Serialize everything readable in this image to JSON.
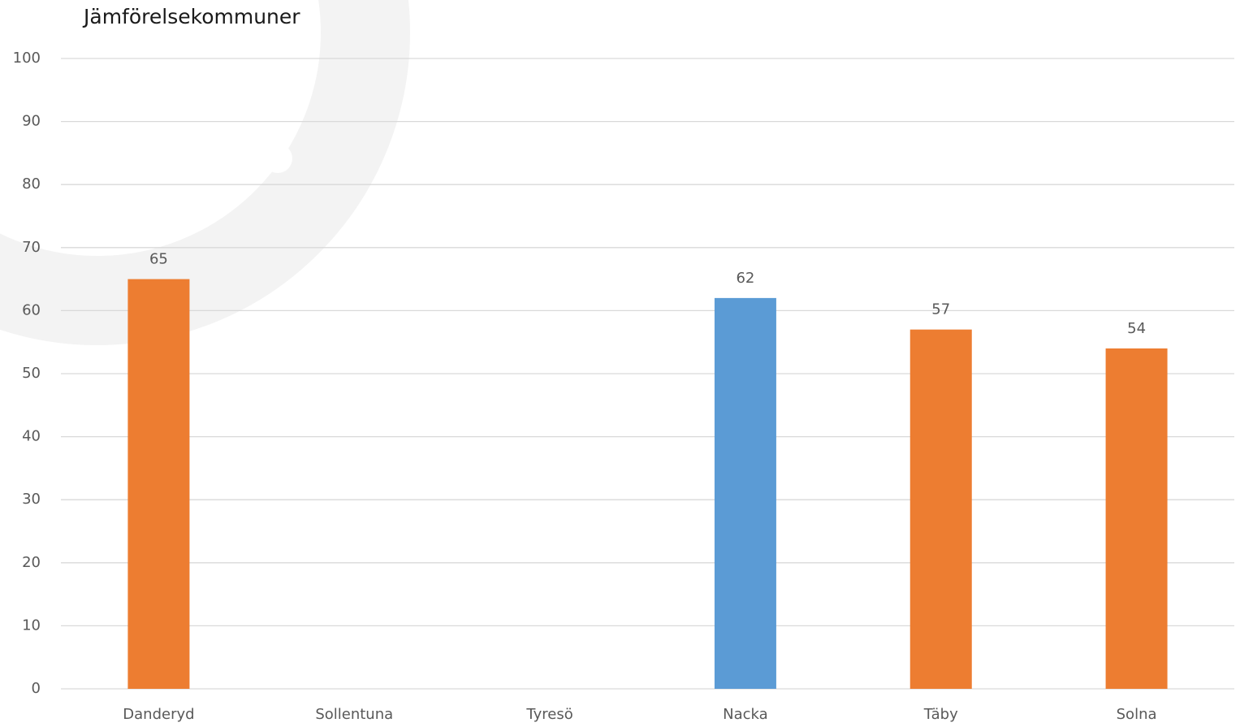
{
  "chart_data": {
    "type": "bar",
    "title": "Jämförelsekommuner",
    "categories": [
      "Danderyd",
      "Sollentuna",
      "Tyresö",
      "Nacka",
      "Täby",
      "Solna"
    ],
    "values": [
      65,
      null,
      null,
      62,
      57,
      54
    ],
    "colors": [
      "#ED7D31",
      null,
      null,
      "#5B9BD5",
      "#ED7D31",
      "#ED7D31"
    ],
    "ylim": [
      0,
      100
    ],
    "yticks": [
      0,
      10,
      20,
      30,
      40,
      50,
      60,
      70,
      80,
      90,
      100
    ],
    "grid": true
  }
}
